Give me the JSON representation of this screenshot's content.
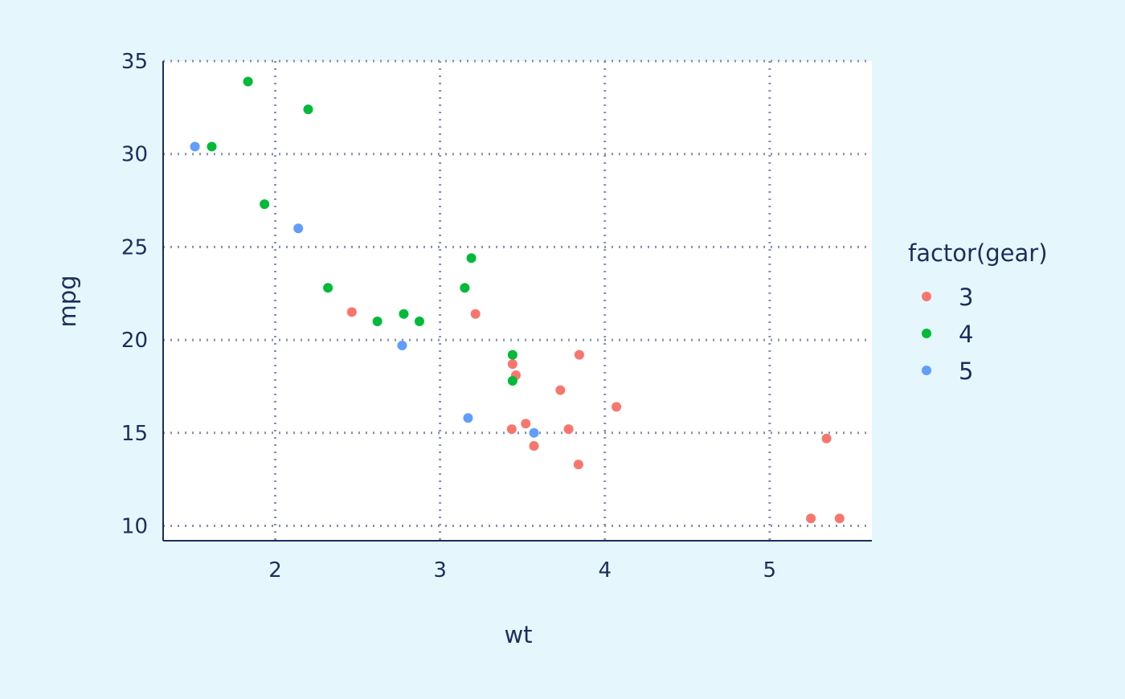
{
  "chart_data": {
    "type": "scatter",
    "title": "",
    "xlabel": "wt",
    "ylabel": "mpg",
    "xlim": [
      1.32,
      5.62
    ],
    "ylim": [
      9.2,
      35.0
    ],
    "x_ticks": [
      2,
      3,
      4,
      5
    ],
    "y_ticks": [
      10,
      15,
      20,
      25,
      30,
      35
    ],
    "grid": true,
    "legend": {
      "title": "factor(gear)",
      "placement": "right"
    },
    "series": [
      {
        "name": "3",
        "color": "#f8766d",
        "points": [
          [
            2.465,
            21.5
          ],
          [
            3.215,
            21.4
          ],
          [
            3.44,
            18.7
          ],
          [
            3.46,
            18.1
          ],
          [
            3.57,
            14.3
          ],
          [
            4.07,
            16.4
          ],
          [
            3.73,
            17.3
          ],
          [
            3.78,
            15.2
          ],
          [
            5.25,
            10.4
          ],
          [
            5.424,
            10.4
          ],
          [
            5.345,
            14.7
          ],
          [
            3.52,
            15.5
          ],
          [
            3.435,
            15.2
          ],
          [
            3.84,
            13.3
          ],
          [
            3.845,
            19.2
          ]
        ]
      },
      {
        "name": "4",
        "color": "#00ba38",
        "points": [
          [
            2.62,
            21.0
          ],
          [
            2.875,
            21.0
          ],
          [
            2.32,
            22.8
          ],
          [
            3.19,
            24.4
          ],
          [
            3.15,
            22.8
          ],
          [
            3.44,
            19.2
          ],
          [
            3.44,
            17.8
          ],
          [
            2.2,
            32.4
          ],
          [
            1.615,
            30.4
          ],
          [
            1.835,
            33.9
          ],
          [
            1.935,
            27.3
          ],
          [
            2.78,
            21.4
          ]
        ]
      },
      {
        "name": "5",
        "color": "#619cff",
        "points": [
          [
            2.14,
            26.0
          ],
          [
            1.513,
            30.4
          ],
          [
            3.17,
            15.8
          ],
          [
            2.77,
            19.7
          ],
          [
            3.57,
            15.0
          ]
        ]
      }
    ]
  }
}
